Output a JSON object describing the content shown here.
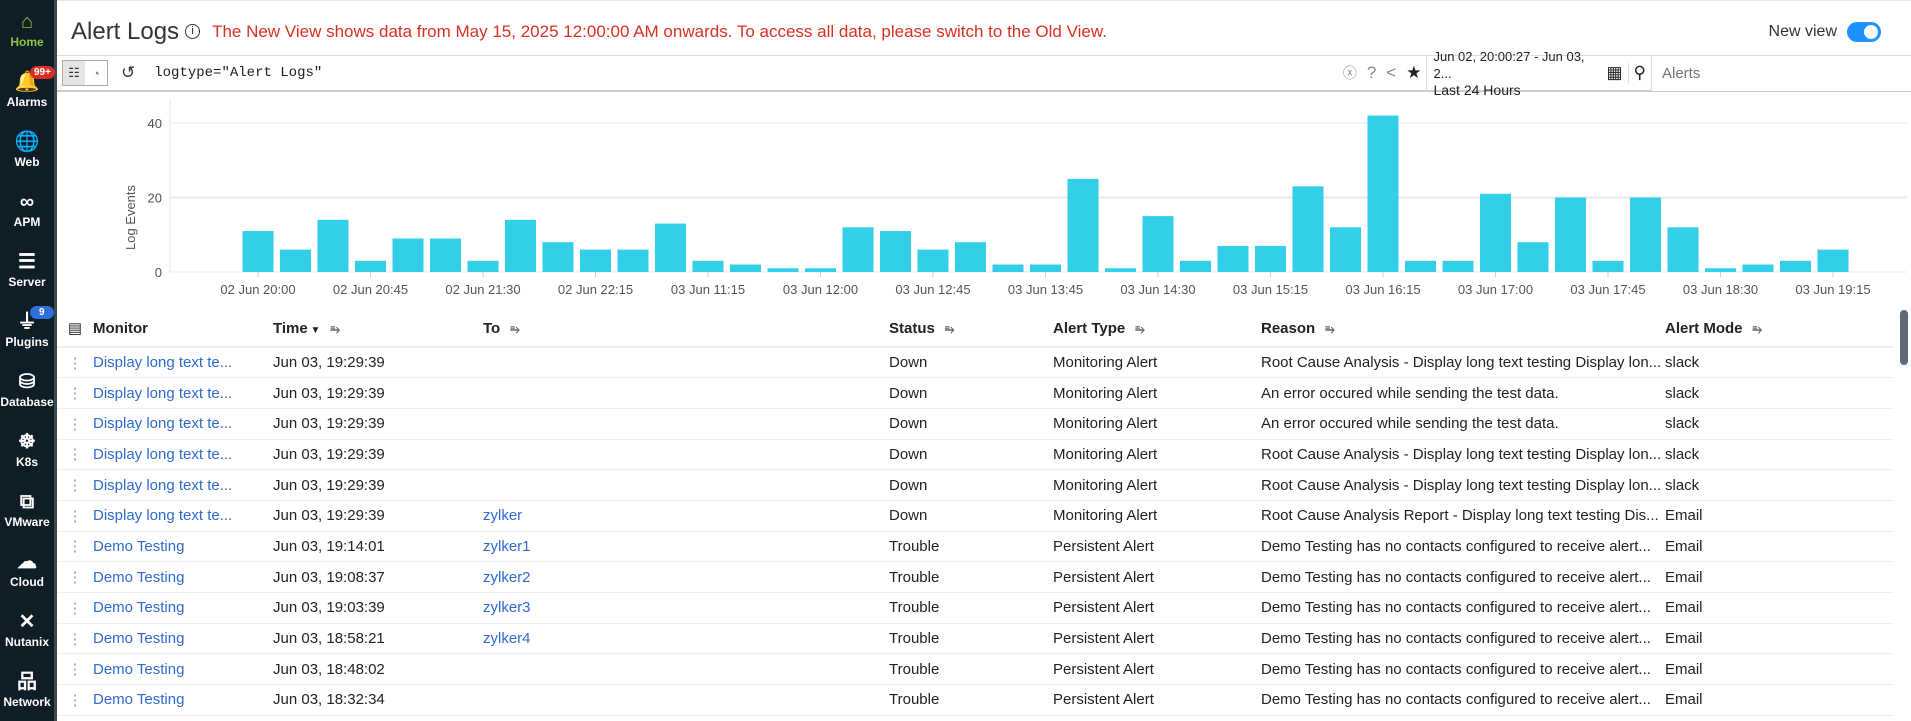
{
  "sidebar": [
    {
      "label": "Home",
      "icon": "home-icon",
      "glyph": "⌂"
    },
    {
      "label": "Alarms",
      "icon": "bell-icon",
      "glyph": "🔔",
      "badge": "99+"
    },
    {
      "label": "Web",
      "icon": "globe-icon",
      "glyph": "🌐"
    },
    {
      "label": "APM",
      "icon": "binoculars-icon",
      "glyph": "∞"
    },
    {
      "label": "Server",
      "icon": "server-icon",
      "glyph": "☰"
    },
    {
      "label": "Plugins",
      "icon": "plug-icon",
      "glyph": "⏚",
      "badge": "9"
    },
    {
      "label": "Database",
      "icon": "database-icon",
      "glyph": "⛁"
    },
    {
      "label": "K8s",
      "icon": "kubernetes-icon",
      "glyph": "☸"
    },
    {
      "label": "VMware",
      "icon": "vmware-icon",
      "glyph": "⧉"
    },
    {
      "label": "Cloud",
      "icon": "cloud-icon",
      "glyph": "☁"
    },
    {
      "label": "Nutanix",
      "icon": "nutanix-icon",
      "glyph": "✕"
    },
    {
      "label": "Network",
      "icon": "network-icon",
      "glyph": "品"
    }
  ],
  "header": {
    "title": "Alert Logs",
    "notice": "The New View shows data from May 15, 2025 12:00:00 AM onwards. To access all data, please switch to the Old View.",
    "new_view_label": "New view"
  },
  "toolbar": {
    "query": "logtype=\"Alert Logs\"",
    "range_line1": "Jun 02, 20:00:27 - Jun 03, 2...",
    "range_line2": "Last 24 Hours",
    "search_placeholder": "Alerts"
  },
  "chart_data": {
    "type": "bar",
    "ylabel": "Log Events",
    "ylim": [
      0,
      44
    ],
    "yticks": [
      0,
      20,
      40
    ],
    "tick_labels": [
      "02 Jun 20:00",
      "02 Jun 20:45",
      "02 Jun 21:30",
      "02 Jun 22:15",
      "03 Jun 11:15",
      "03 Jun 12:00",
      "03 Jun 12:45",
      "03 Jun 13:45",
      "03 Jun 14:30",
      "03 Jun 15:15",
      "03 Jun 16:15",
      "03 Jun 17:00",
      "03 Jun 17:45",
      "03 Jun 18:30",
      "03 Jun 19:15"
    ],
    "values": [
      11,
      6,
      14,
      3,
      9,
      9,
      3,
      14,
      8,
      6,
      6,
      13,
      3,
      2,
      1,
      1,
      12,
      11,
      6,
      8,
      2,
      2,
      25,
      1,
      15,
      3,
      7,
      7,
      23,
      12,
      42,
      3,
      3,
      21,
      8,
      20,
      3,
      20,
      12,
      1,
      2,
      3,
      6
    ],
    "color": "#33cfe8"
  },
  "table": {
    "columns": [
      "Monitor",
      "Time",
      "To",
      "Status",
      "Alert Type",
      "Reason",
      "Alert Mode"
    ],
    "rows": [
      [
        "Display long text te...",
        "Jun 03, 19:29:39",
        "",
        "Down",
        "Monitoring Alert",
        "Root Cause Analysis - Display long text testing Display lon...",
        "slack"
      ],
      [
        "Display long text te...",
        "Jun 03, 19:29:39",
        "",
        "Down",
        "Monitoring Alert",
        "An error occured while sending the test data.",
        "slack"
      ],
      [
        "Display long text te...",
        "Jun 03, 19:29:39",
        "",
        "Down",
        "Monitoring Alert",
        "An error occured while sending the test data.",
        "slack"
      ],
      [
        "Display long text te...",
        "Jun 03, 19:29:39",
        "",
        "Down",
        "Monitoring Alert",
        "Root Cause Analysis - Display long text testing Display lon...",
        "slack"
      ],
      [
        "Display long text te...",
        "Jun 03, 19:29:39",
        "",
        "Down",
        "Monitoring Alert",
        "Root Cause Analysis - Display long text testing Display lon...",
        "slack"
      ],
      [
        "Display long text te...",
        "Jun 03, 19:29:39",
        "zylker",
        "Down",
        "Monitoring Alert",
        "Root Cause Analysis Report - Display long text testing Dis...",
        "Email"
      ],
      [
        "Demo Testing",
        "Jun 03, 19:14:01",
        "zylker1",
        "Trouble",
        "Persistent Alert",
        "Demo Testing has no contacts configured to receive alert...",
        "Email"
      ],
      [
        "Demo Testing",
        "Jun 03, 19:08:37",
        "zylker2",
        "Trouble",
        "Persistent Alert",
        "Demo Testing has no contacts configured to receive alert...",
        "Email"
      ],
      [
        "Demo Testing",
        "Jun 03, 19:03:39",
        "zylker3",
        "Trouble",
        "Persistent Alert",
        "Demo Testing has no contacts configured to receive alert...",
        "Email"
      ],
      [
        "Demo Testing",
        "Jun 03, 18:58:21",
        "zylker4",
        "Trouble",
        "Persistent Alert",
        "Demo Testing has no contacts configured to receive alert...",
        "Email"
      ],
      [
        "Demo Testing",
        "Jun 03, 18:48:02",
        "",
        "Trouble",
        "Persistent Alert",
        "Demo Testing has no contacts configured to receive alert...",
        "Email"
      ],
      [
        "Demo Testing",
        "Jun 03, 18:32:34",
        "",
        "Trouble",
        "Persistent Alert",
        "Demo Testing has no contacts configured to receive alert...",
        "Email"
      ]
    ]
  }
}
